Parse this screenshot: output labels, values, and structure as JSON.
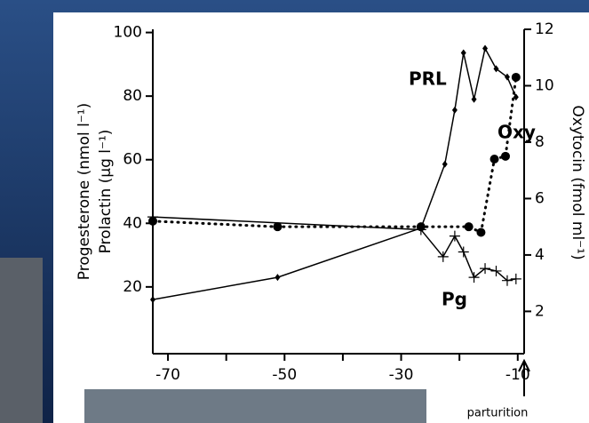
{
  "chart_data": {
    "type": "line",
    "y_label_lines": [
      "Progesterone (nmol l⁻¹)",
      "Prolactin (µg l⁻¹)"
    ],
    "y2_label": "Oxytocin (fmol ml⁻¹)",
    "xlim": [
      -72.6,
      -8.9
    ],
    "xticks": [
      -70,
      -50,
      -30,
      -10
    ],
    "xminor": [
      -60,
      -40,
      -20
    ],
    "ylim": [
      -1,
      101
    ],
    "yticks": [
      20,
      40,
      60,
      80,
      100
    ],
    "y2lim": [
      0.5,
      12
    ],
    "y2ticks": [
      2,
      4,
      6,
      8,
      10,
      12
    ],
    "series": [
      {
        "name": "PRL",
        "color": "#000000",
        "style": "solid",
        "marker": "diamond",
        "x": [
          -72.6,
          -51.2,
          -26.6,
          -22.5,
          -20.8,
          -19.3,
          -17.5,
          -15.6,
          -13.7,
          -11.8,
          -10.3
        ],
        "values": [
          16,
          23,
          38.5,
          58.6,
          75.6,
          93.6,
          79,
          95,
          88.6,
          86,
          79.7
        ]
      },
      {
        "name": "Pg",
        "color": "#000000",
        "style": "solid",
        "marker": "plus",
        "x": [
          -72.6,
          -26.6,
          -22.8,
          -20.8,
          -19.3,
          -17.5,
          -15.6,
          -13.7,
          -11.8,
          -10.3
        ],
        "values": [
          42,
          38,
          29.5,
          36,
          31,
          23,
          25.8,
          25,
          22,
          22.5
        ]
      },
      {
        "name": "Oxy",
        "color": "#000000",
        "style": "dotted",
        "marker": "circle",
        "axis": "y2",
        "x": [
          -72.6,
          -51.2,
          -26.6,
          -18.4,
          -16.3,
          -14,
          -12.1,
          -10.3
        ],
        "values": [
          5.2,
          5.0,
          5.0,
          5.0,
          4.8,
          7.4,
          7.5,
          10.3
        ]
      }
    ],
    "annotation": "parturition"
  }
}
